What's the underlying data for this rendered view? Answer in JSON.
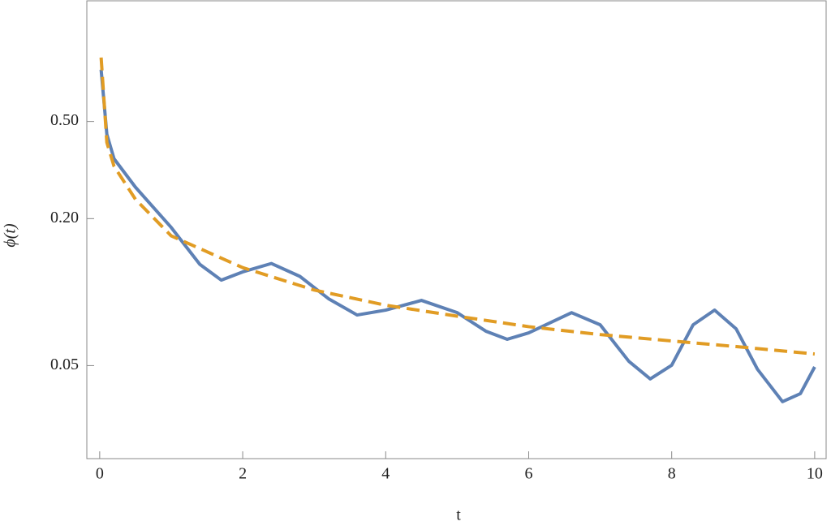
{
  "chart_data": {
    "type": "line",
    "xlabel": "t",
    "ylabel": "ϕ(t)",
    "xlim": [
      -0.18,
      10.16
    ],
    "ylim": [
      0.0208,
      1.56
    ],
    "ylog": true,
    "xticks": [
      0,
      2,
      4,
      6,
      8,
      10
    ],
    "yticks": [
      0.05,
      {
        "value": 0.2,
        "label": "0.20"
      },
      {
        "value": 0.5,
        "label": "0.50"
      }
    ],
    "series": [
      {
        "color": "#5e81b5",
        "dash": false,
        "x": [
          0.02,
          0.1,
          0.2,
          0.5,
          1,
          1.4,
          1.7,
          2,
          2.4,
          2.8,
          3.2,
          3.6,
          4,
          4.5,
          5,
          5.4,
          5.7,
          6,
          6.6,
          7,
          7.4,
          7.7,
          8,
          8.3,
          8.6,
          8.9,
          9.2,
          9.55,
          9.8,
          10
        ],
        "values": [
          0.815,
          0.443,
          0.352,
          0.269,
          0.184,
          0.13,
          0.112,
          0.121,
          0.131,
          0.116,
          0.094,
          0.0806,
          0.0844,
          0.0925,
          0.0824,
          0.0692,
          0.0641,
          0.0681,
          0.0824,
          0.0735,
          0.0521,
          0.0441,
          0.0502,
          0.0735,
          0.0844,
          0.0708,
          0.0483,
          0.0356,
          0.0384,
          0.0494
        ]
      },
      {
        "color": "#e19c24",
        "dash": true,
        "x": [
          0.02,
          0.1,
          0.2,
          0.5,
          1,
          2,
          3,
          4,
          5,
          6,
          7,
          8,
          9,
          10
        ],
        "values": [
          0.914,
          0.41,
          0.328,
          0.24,
          0.17,
          0.126,
          0.102,
          0.0884,
          0.0797,
          0.0722,
          0.067,
          0.0631,
          0.0595,
          0.0558
        ]
      }
    ]
  }
}
